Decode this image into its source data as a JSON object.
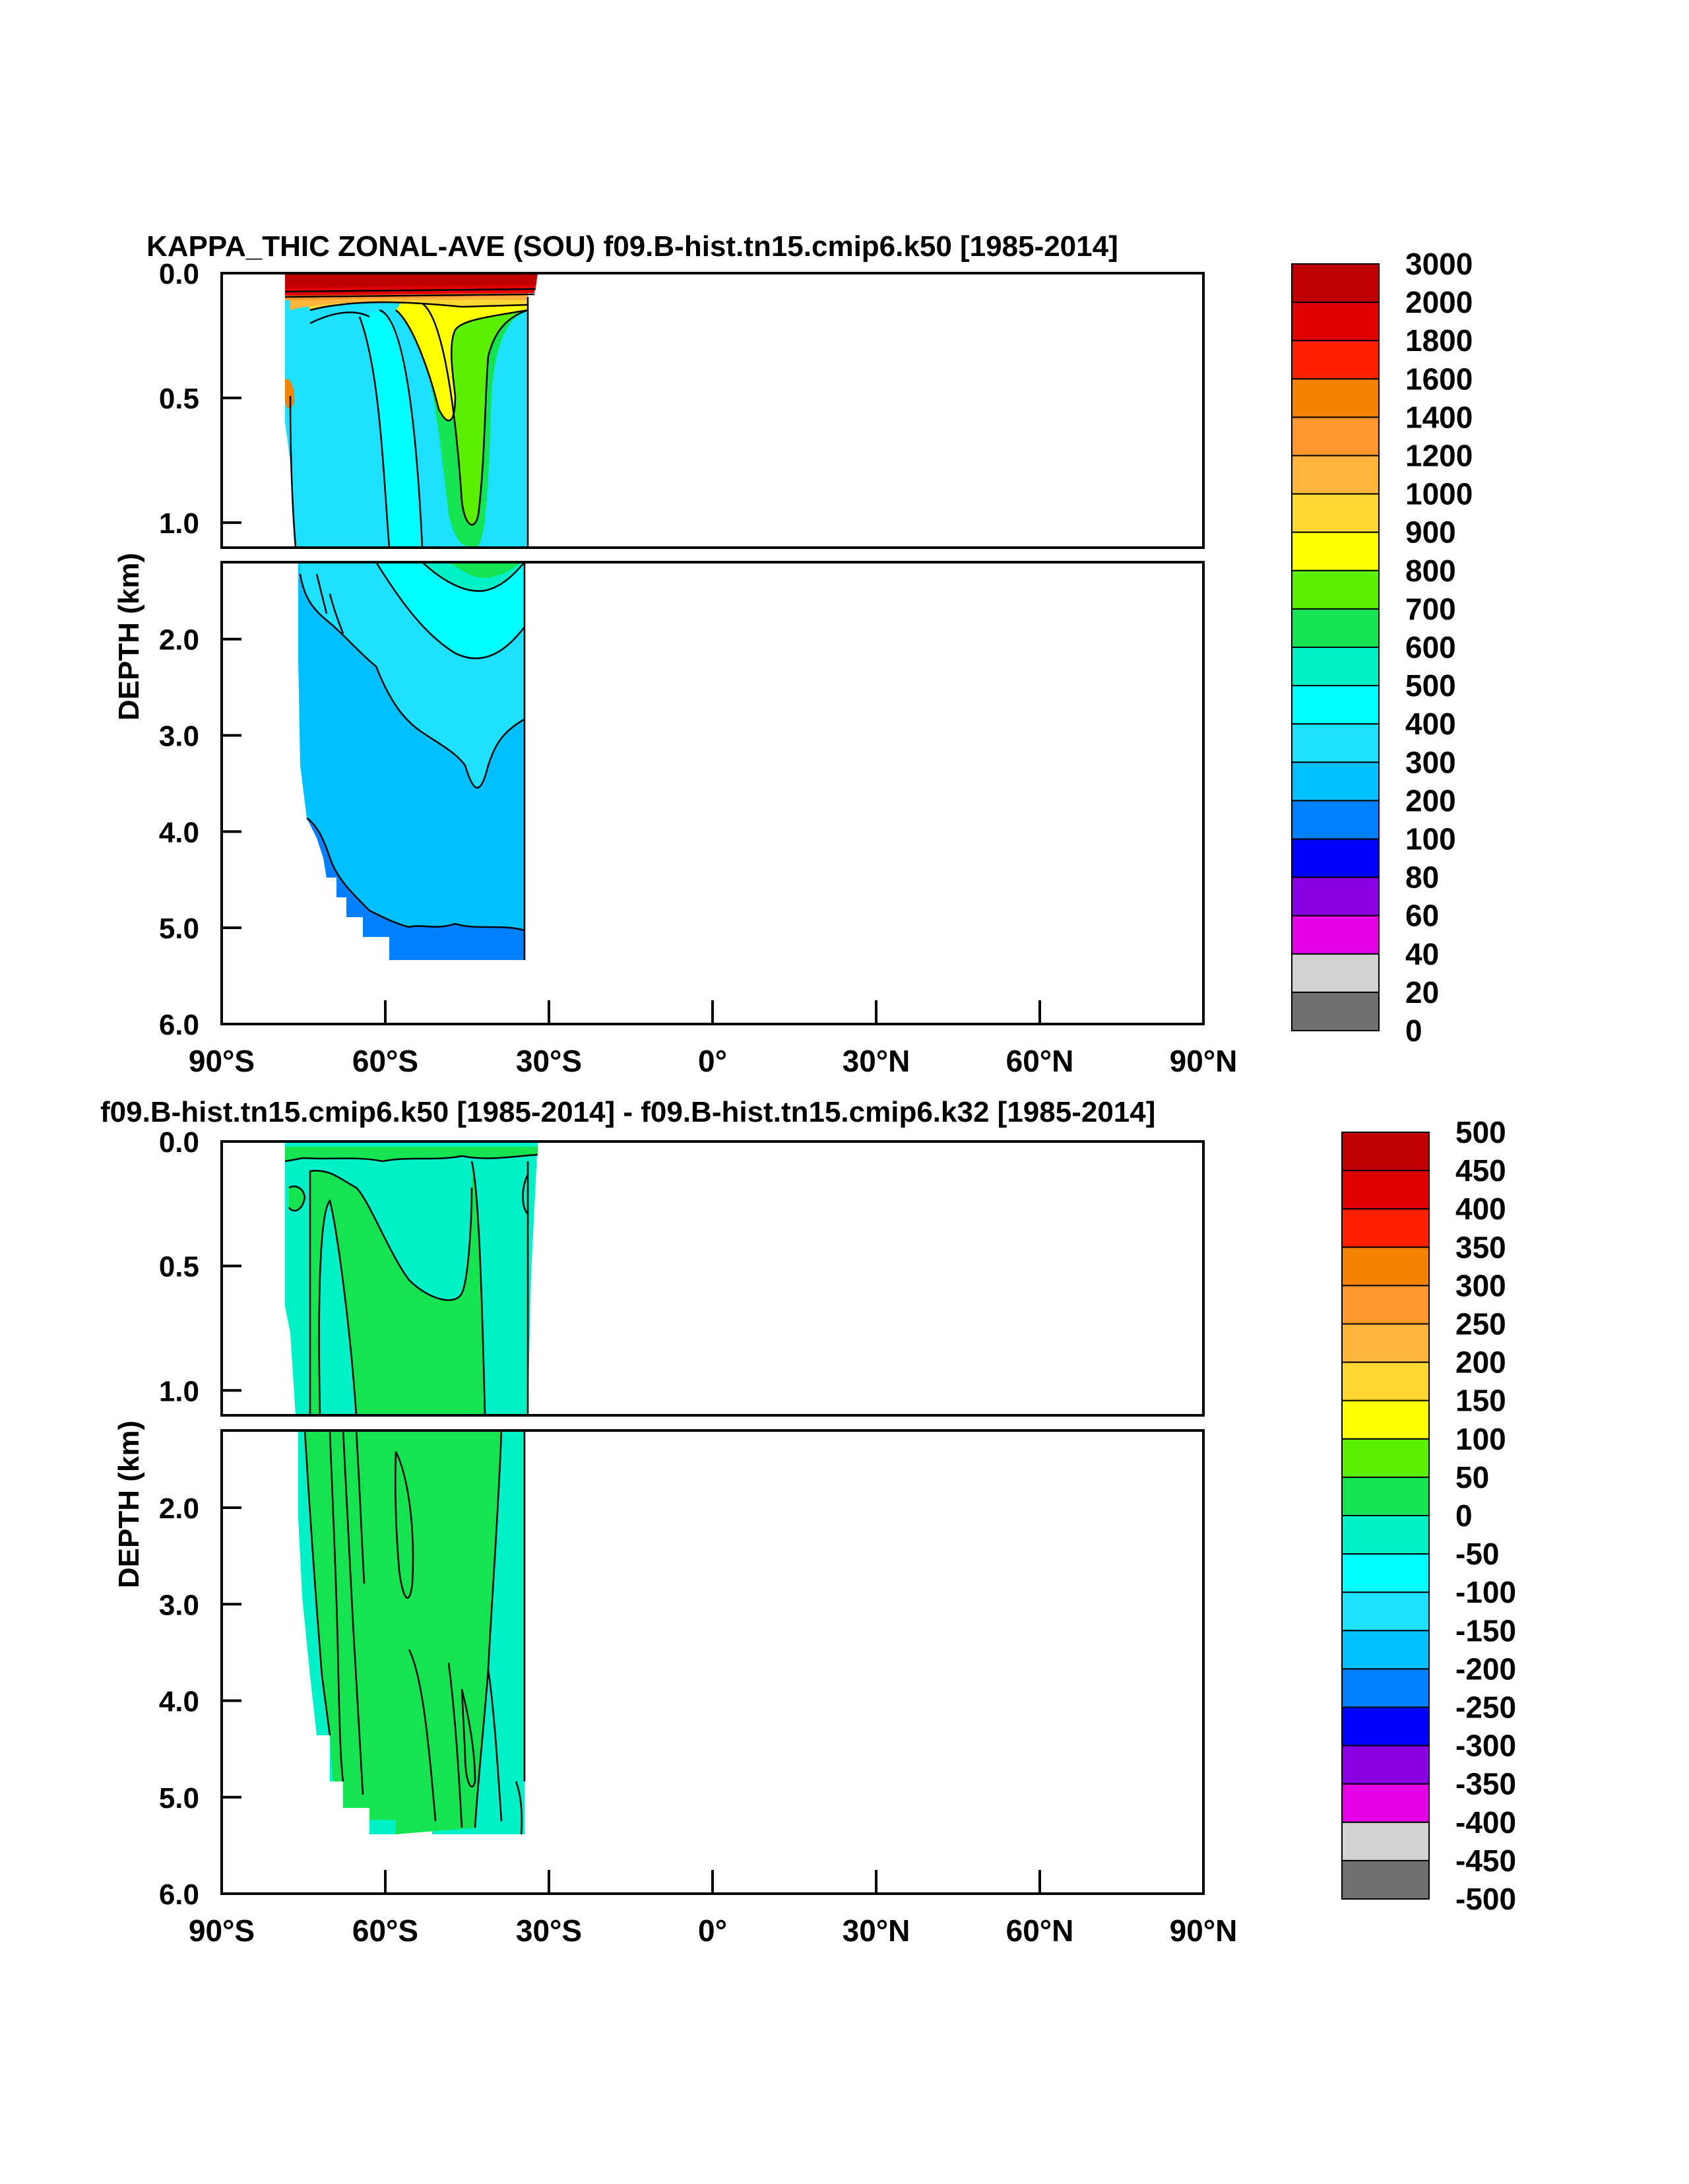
{
  "chart_data": [
    {
      "type": "heatmap",
      "title": "KAPPA_THIC ZONAL-AVE (SOU) f09.B-hist.tn15.cmip6.k50 [1985-2014]",
      "xlabel": "",
      "ylabel": "DEPTH (km)",
      "x_ticks": [
        "90°S",
        "60°S",
        "30°S",
        "0°",
        "30°N",
        "60°N",
        "90°N"
      ],
      "x_tick_values": [
        -90,
        -60,
        -30,
        0,
        30,
        60,
        90
      ],
      "xlim": [
        -90,
        90
      ],
      "y_ticks_upper": [
        "0.0",
        "0.5",
        "1.0"
      ],
      "y_ticks_lower": [
        "2.0",
        "3.0",
        "4.0",
        "5.0",
        "6.0"
      ],
      "ylim_upper_km": [
        0,
        1.1
      ],
      "ylim_lower_km": [
        1.2,
        6.0
      ],
      "colorbar_labels": [
        "3000",
        "2000",
        "1800",
        "1600",
        "1400",
        "1200",
        "1000",
        "900",
        "800",
        "700",
        "600",
        "500",
        "400",
        "300",
        "200",
        "100",
        "80",
        "60",
        "40",
        "20",
        "0"
      ],
      "colorbar_colors": [
        "#c00000",
        "#e00000",
        "#ff2000",
        "#f58200",
        "#ff962e",
        "#ffb43c",
        "#ffd732",
        "#ffff00",
        "#5af000",
        "#14e450",
        "#00f0c8",
        "#00ffff",
        "#1ee1ff",
        "#00c0ff",
        "#0080ff",
        "#0000ff",
        "#8a00e6",
        "#e600e6",
        "#d2d2d2",
        "#707070"
      ]
    },
    {
      "type": "heatmap",
      "title": "f09.B-hist.tn15.cmip6.k50 [1985-2014] - f09.B-hist.tn15.cmip6.k32 [1985-2014]",
      "xlabel": "",
      "ylabel": "DEPTH (km)",
      "x_ticks": [
        "90°S",
        "60°S",
        "30°S",
        "0°",
        "30°N",
        "60°N",
        "90°N"
      ],
      "x_tick_values": [
        -90,
        -60,
        -30,
        0,
        30,
        60,
        90
      ],
      "xlim": [
        -90,
        90
      ],
      "y_ticks_upper": [
        "0.0",
        "0.5",
        "1.0"
      ],
      "y_ticks_lower": [
        "2.0",
        "3.0",
        "4.0",
        "5.0",
        "6.0"
      ],
      "ylim_upper_km": [
        0,
        1.1
      ],
      "ylim_lower_km": [
        1.2,
        6.0
      ],
      "colorbar_labels": [
        "500",
        "450",
        "400",
        "350",
        "300",
        "250",
        "200",
        "150",
        "100",
        "50",
        "0",
        "-50",
        "-100",
        "-150",
        "-200",
        "-250",
        "-300",
        "-350",
        "-400",
        "-450",
        "-500"
      ],
      "colorbar_colors": [
        "#c00000",
        "#e00000",
        "#ff2000",
        "#f58200",
        "#ff962e",
        "#ffb43c",
        "#ffd732",
        "#ffff00",
        "#5af000",
        "#14e450",
        "#00f0c8",
        "#00ffff",
        "#1ee1ff",
        "#00c0ff",
        "#0080ff",
        "#0000ff",
        "#8a00e6",
        "#e600e6",
        "#d2d2d2",
        "#707070"
      ]
    }
  ]
}
